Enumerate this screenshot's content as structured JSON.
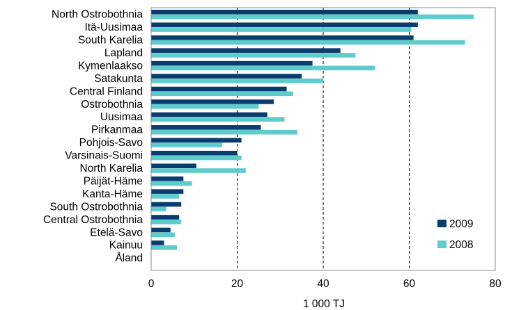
{
  "chart_data": {
    "type": "bar",
    "orientation": "horizontal",
    "categories": [
      "North Ostrobothnia",
      "Itä-Uusimaa",
      "South Karelia",
      "Lapland",
      "Kymenlaakso",
      "Satakunta",
      "Central Finland",
      "Ostrobothnia",
      "Uusimaa",
      "Pirkanmaa",
      "Pohjois-Savo",
      "Varsinais-Suomi",
      "North Karelia",
      "Päijät-Häme",
      "Kanta-Häme",
      "South Ostrobothnia",
      "Central Ostrobothnia",
      "Etelä-Savo",
      "Kainuu",
      "Åland"
    ],
    "series": [
      {
        "name": "2009",
        "color": "#0a3d6e",
        "values": [
          62,
          62,
          61,
          44,
          37.5,
          35,
          31.5,
          28.5,
          27,
          25.5,
          21,
          20,
          10.5,
          7.5,
          7.5,
          7,
          6.5,
          4.5,
          3,
          0
        ]
      },
      {
        "name": "2008",
        "color": "#5fcccc",
        "values": [
          75,
          60.5,
          73,
          47.5,
          52,
          40,
          33,
          25,
          31,
          34,
          16.5,
          21,
          22,
          9.5,
          6.5,
          3.5,
          7,
          5.5,
          6,
          0
        ]
      }
    ],
    "xlabel": "1 000 TJ",
    "xlim": [
      0,
      80
    ],
    "xticks": [
      0,
      20,
      40,
      60,
      80
    ],
    "xtick_labels": [
      "0",
      "20",
      "40",
      "60",
      "80"
    ],
    "gridlines": [
      20,
      40,
      60
    ],
    "grid_style": "dashed vertical",
    "legend_position": "bottom-right",
    "title": ""
  }
}
